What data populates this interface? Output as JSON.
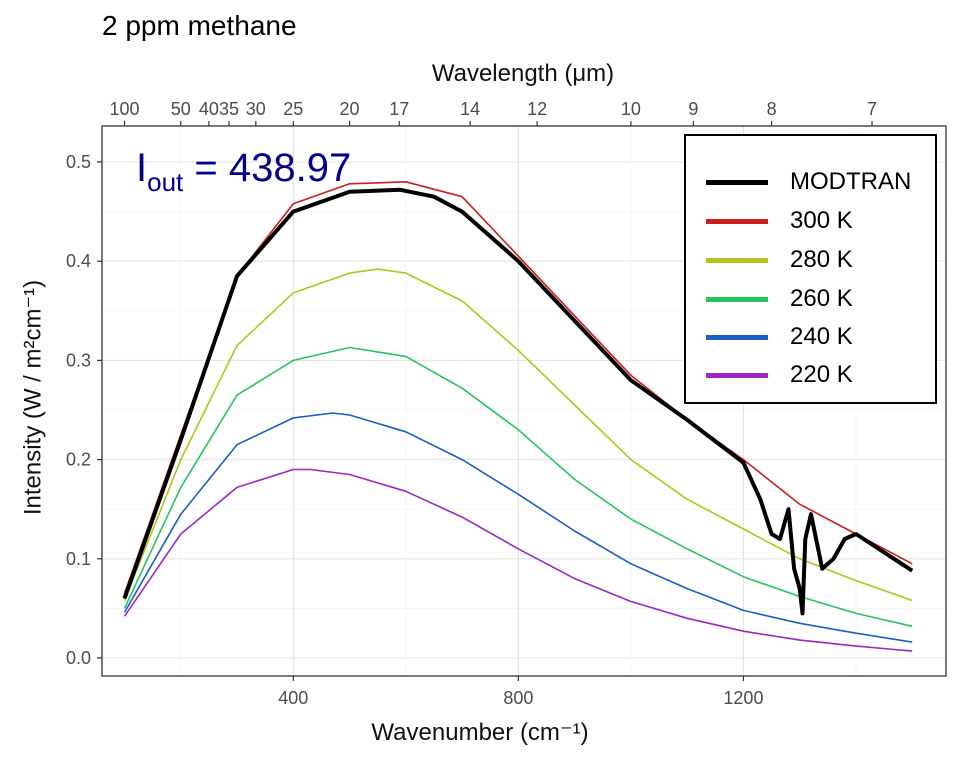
{
  "chart_data": {
    "type": "line",
    "title": "2 ppm methane",
    "xlabel": "Wavenumber",
    "xlabel_unit": "(cm⁻¹)",
    "ylabel": "Intensity (W / m²cm⁻¹)",
    "top_axis_label": "Wavelength (μm)",
    "xlim": [
      100,
      1500
    ],
    "ylim": [
      0,
      0.5
    ],
    "x_ticks": [
      400,
      800,
      1200
    ],
    "y_ticks": [
      "0.0",
      "0.1",
      "0.2",
      "0.3",
      "0.4",
      "0.5"
    ],
    "top_ticks": [
      100,
      50,
      40,
      35,
      30,
      25,
      20,
      17,
      14,
      12,
      10,
      9,
      8,
      7
    ],
    "grid": true,
    "legend_position": "top-right",
    "annotation": {
      "label": "I",
      "subscript": "out",
      "operator": "=",
      "value": "438.97"
    },
    "series": [
      {
        "name": "MODTRAN",
        "color": "#000000",
        "values": [
          [
            100,
            0.06
          ],
          [
            200,
            0.22
          ],
          [
            300,
            0.385
          ],
          [
            400,
            0.45
          ],
          [
            500,
            0.47
          ],
          [
            590,
            0.472
          ],
          [
            650,
            0.465
          ],
          [
            700,
            0.45
          ],
          [
            800,
            0.4
          ],
          [
            900,
            0.34
          ],
          [
            1000,
            0.28
          ],
          [
            1100,
            0.24
          ],
          [
            1200,
            0.197
          ],
          [
            1230,
            0.16
          ],
          [
            1250,
            0.125
          ],
          [
            1265,
            0.12
          ],
          [
            1280,
            0.15
          ],
          [
            1290,
            0.09
          ],
          [
            1300,
            0.07
          ],
          [
            1305,
            0.045
          ],
          [
            1310,
            0.12
          ],
          [
            1320,
            0.145
          ],
          [
            1340,
            0.09
          ],
          [
            1360,
            0.1
          ],
          [
            1380,
            0.12
          ],
          [
            1400,
            0.125
          ],
          [
            1500,
            0.088
          ]
        ]
      },
      {
        "name": "300 K",
        "color": "#cc1c1c",
        "values": [
          [
            100,
            0.065
          ],
          [
            200,
            0.225
          ],
          [
            300,
            0.385
          ],
          [
            400,
            0.458
          ],
          [
            500,
            0.478
          ],
          [
            600,
            0.48
          ],
          [
            700,
            0.465
          ],
          [
            800,
            0.405
          ],
          [
            900,
            0.345
          ],
          [
            1000,
            0.285
          ],
          [
            1100,
            0.24
          ],
          [
            1200,
            0.2
          ],
          [
            1300,
            0.155
          ],
          [
            1400,
            0.125
          ],
          [
            1500,
            0.095
          ]
        ]
      },
      {
        "name": "280 K",
        "color": "#b3c41a",
        "values": [
          [
            100,
            0.058
          ],
          [
            200,
            0.2
          ],
          [
            300,
            0.315
          ],
          [
            400,
            0.368
          ],
          [
            500,
            0.388
          ],
          [
            550,
            0.392
          ],
          [
            600,
            0.388
          ],
          [
            700,
            0.36
          ],
          [
            800,
            0.31
          ],
          [
            900,
            0.255
          ],
          [
            1000,
            0.2
          ],
          [
            1100,
            0.16
          ],
          [
            1200,
            0.13
          ],
          [
            1300,
            0.1
          ],
          [
            1400,
            0.078
          ],
          [
            1500,
            0.058
          ]
        ]
      },
      {
        "name": "260 K",
        "color": "#22c55e",
        "values": [
          [
            100,
            0.05
          ],
          [
            200,
            0.172
          ],
          [
            300,
            0.265
          ],
          [
            400,
            0.3
          ],
          [
            500,
            0.313
          ],
          [
            600,
            0.304
          ],
          [
            700,
            0.272
          ],
          [
            800,
            0.23
          ],
          [
            900,
            0.18
          ],
          [
            1000,
            0.14
          ],
          [
            1100,
            0.11
          ],
          [
            1200,
            0.082
          ],
          [
            1300,
            0.062
          ],
          [
            1400,
            0.045
          ],
          [
            1500,
            0.032
          ]
        ]
      },
      {
        "name": "240 K",
        "color": "#1a5fc4",
        "values": [
          [
            100,
            0.046
          ],
          [
            200,
            0.145
          ],
          [
            300,
            0.215
          ],
          [
            400,
            0.242
          ],
          [
            470,
            0.247
          ],
          [
            500,
            0.245
          ],
          [
            600,
            0.228
          ],
          [
            700,
            0.2
          ],
          [
            800,
            0.165
          ],
          [
            900,
            0.128
          ],
          [
            1000,
            0.095
          ],
          [
            1100,
            0.07
          ],
          [
            1200,
            0.048
          ],
          [
            1300,
            0.035
          ],
          [
            1400,
            0.025
          ],
          [
            1500,
            0.016
          ]
        ]
      },
      {
        "name": "220 K",
        "color": "#9b27c4",
        "values": [
          [
            100,
            0.042
          ],
          [
            200,
            0.125
          ],
          [
            300,
            0.172
          ],
          [
            400,
            0.19
          ],
          [
            430,
            0.19
          ],
          [
            500,
            0.185
          ],
          [
            600,
            0.168
          ],
          [
            700,
            0.142
          ],
          [
            800,
            0.11
          ],
          [
            900,
            0.08
          ],
          [
            1000,
            0.057
          ],
          [
            1100,
            0.04
          ],
          [
            1200,
            0.027
          ],
          [
            1300,
            0.018
          ],
          [
            1400,
            0.012
          ],
          [
            1500,
            0.007
          ]
        ]
      }
    ]
  }
}
